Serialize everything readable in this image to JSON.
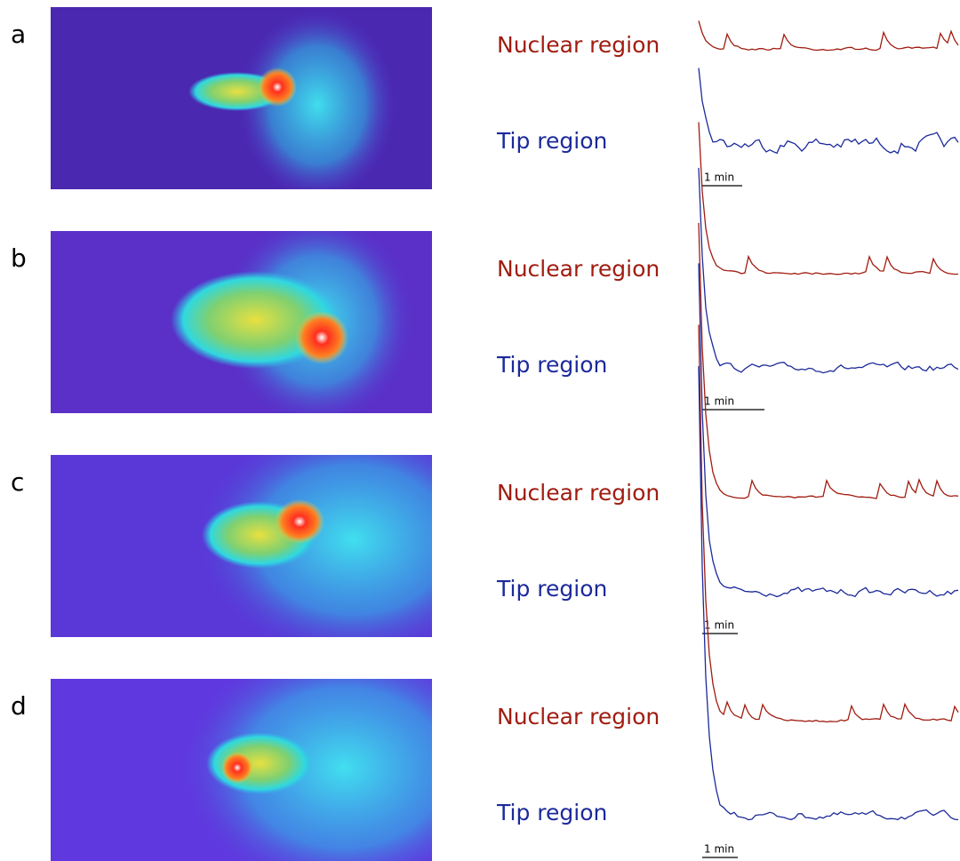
{
  "panels": [
    {
      "label": "a",
      "nuclear": "Nuclear region",
      "tip": "Tip region",
      "scale": "1 min"
    },
    {
      "label": "b",
      "nuclear": "Nuclear region",
      "tip": "Tip region",
      "scale": "1 min"
    },
    {
      "label": "c",
      "nuclear": "Nuclear region",
      "tip": "Tip region",
      "scale": "1 min"
    },
    {
      "label": "d",
      "nuclear": "Nuclear region",
      "tip": "Tip region",
      "scale": "1 min"
    }
  ]
}
